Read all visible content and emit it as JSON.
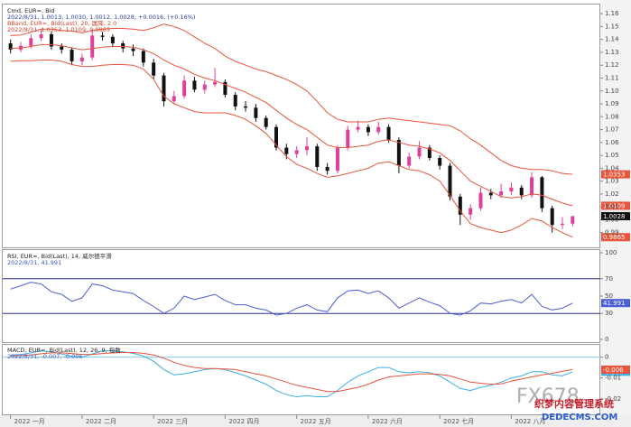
{
  "chart_data": [
    {
      "type": "candlestick",
      "title": "Cmd, EUR=, Bid",
      "subtitle": "2022/8/31, 1.0013, 1.0030, 1.0012, 1.0028, +0.0016, (+0.16%)",
      "annotations": [
        "BBand, EUR=, Bid(Last), 20, 属降, 2.0",
        "2022/8/31, 1.0353, 1.0109, 0.9865"
      ],
      "categories": [
        "2022 一月",
        null,
        null,
        null,
        null,
        null,
        null,
        "2022 二月",
        null,
        null,
        null,
        null,
        null,
        null,
        "2022 三月",
        null,
        null,
        null,
        null,
        null,
        null,
        "2022 四月",
        null,
        null,
        null,
        null,
        null,
        null,
        "2022 五月",
        null,
        null,
        null,
        null,
        null,
        null,
        "2022 六月",
        null,
        null,
        null,
        null,
        null,
        null,
        "2022 七月",
        null,
        null,
        null,
        null,
        null,
        null,
        "2022 八月",
        null,
        null,
        null,
        null,
        null,
        null
      ],
      "open": [
        1.137,
        1.132,
        1.135,
        1.141,
        1.144,
        1.1345,
        1.132,
        1.123,
        1.126,
        1.143,
        1.142,
        1.137,
        1.133,
        1.131,
        1.122,
        1.112,
        1.092,
        1.096,
        1.108,
        1.101,
        1.105,
        1.107,
        1.097,
        1.088,
        1.087,
        1.079,
        1.072,
        1.056,
        1.051,
        1.054,
        1.057,
        1.041,
        1.038,
        1.056,
        1.07,
        1.072,
        1.068,
        1.072,
        1.062,
        1.042,
        1.049,
        1.056,
        1.048,
        1.042,
        1.018,
        1.004,
        1.009,
        1.021,
        1.019,
        1.022,
        1.025,
        1.019,
        1.033,
        1.009,
        0.996,
        0.997
      ],
      "high": [
        1.14,
        1.138,
        1.144,
        1.148,
        1.146,
        1.137,
        1.134,
        1.129,
        1.148,
        1.146,
        1.144,
        1.139,
        1.136,
        1.133,
        1.125,
        1.114,
        1.1,
        1.112,
        1.111,
        1.108,
        1.118,
        1.109,
        1.099,
        1.092,
        1.09,
        1.081,
        1.074,
        1.059,
        1.057,
        1.064,
        1.059,
        1.044,
        1.058,
        1.073,
        1.077,
        1.074,
        1.076,
        1.074,
        1.064,
        1.052,
        1.061,
        1.058,
        1.05,
        1.044,
        1.02,
        1.012,
        1.025,
        1.024,
        1.028,
        1.029,
        1.027,
        1.037,
        1.034,
        1.011,
        1.002,
        1.003
      ],
      "low": [
        1.129,
        1.13,
        1.133,
        1.139,
        1.132,
        1.129,
        1.12,
        1.12,
        1.124,
        1.139,
        1.134,
        1.13,
        1.127,
        1.119,
        1.109,
        1.088,
        1.09,
        1.094,
        1.099,
        1.098,
        1.103,
        1.095,
        1.085,
        1.084,
        1.076,
        1.07,
        1.054,
        1.047,
        1.048,
        1.05,
        1.038,
        1.035,
        1.036,
        1.054,
        1.068,
        1.065,
        1.066,
        1.06,
        1.036,
        1.04,
        1.047,
        1.046,
        1.039,
        1.015,
        0.996,
        1.0,
        1.007,
        1.016,
        1.017,
        1.019,
        1.016,
        1.017,
        1.006,
        0.99,
        0.993,
        0.995
      ],
      "close": [
        1.132,
        1.135,
        1.141,
        1.144,
        1.1345,
        1.132,
        1.123,
        1.126,
        1.143,
        1.142,
        1.137,
        1.133,
        1.131,
        1.122,
        1.112,
        1.092,
        1.096,
        1.108,
        1.101,
        1.105,
        1.107,
        1.097,
        1.088,
        1.087,
        1.079,
        1.072,
        1.056,
        1.051,
        1.054,
        1.057,
        1.041,
        1.038,
        1.056,
        1.07,
        1.072,
        1.068,
        1.072,
        1.062,
        1.042,
        1.049,
        1.056,
        1.048,
        1.042,
        1.018,
        1.004,
        1.009,
        1.021,
        1.019,
        1.022,
        1.025,
        1.019,
        1.033,
        1.009,
        0.996,
        0.997,
        1.0028
      ],
      "up_color": "#e0409a",
      "down_color": "#111111",
      "close_box_color": "#111111",
      "series": [
        {
          "color": "#e8553b",
          "values": [
            1.143,
            1.1435,
            1.1455,
            1.148,
            1.148,
            1.147,
            1.1465,
            1.145,
            1.147,
            1.148,
            1.1485,
            1.1485,
            1.148,
            1.147,
            1.149,
            1.152,
            1.15,
            1.147,
            1.142,
            1.137,
            1.133,
            1.127,
            1.123,
            1.12,
            1.117,
            1.115,
            1.112,
            1.109,
            1.105,
            1.1,
            1.092,
            1.083,
            1.078,
            1.076,
            1.076,
            1.076,
            1.078,
            1.079,
            1.078,
            1.077,
            1.076,
            1.075,
            1.074,
            1.073,
            1.069,
            1.063,
            1.058,
            1.052,
            1.046,
            1.042,
            1.04,
            1.039,
            1.039,
            1.038,
            1.036,
            1.0353
          ]
        },
        {
          "color": "#e8553b",
          "values": [
            1.133,
            1.1335,
            1.1345,
            1.136,
            1.136,
            1.135,
            1.1335,
            1.132,
            1.133,
            1.134,
            1.1345,
            1.1345,
            1.134,
            1.132,
            1.129,
            1.124,
            1.12,
            1.117,
            1.113,
            1.11,
            1.108,
            1.105,
            1.102,
            1.099,
            1.095,
            1.091,
            1.085,
            1.079,
            1.074,
            1.07,
            1.064,
            1.058,
            1.056,
            1.056,
            1.057,
            1.058,
            1.061,
            1.062,
            1.06,
            1.058,
            1.057,
            1.055,
            1.052,
            1.046,
            1.038,
            1.03,
            1.026,
            1.022,
            1.018,
            1.017,
            1.018,
            1.02,
            1.019,
            1.016,
            1.013,
            1.0109
          ]
        },
        {
          "color": "#e8553b",
          "values": [
            1.123,
            1.1235,
            1.1235,
            1.124,
            1.124,
            1.123,
            1.1205,
            1.119,
            1.119,
            1.12,
            1.1205,
            1.1205,
            1.12,
            1.117,
            1.109,
            1.096,
            1.09,
            1.087,
            1.084,
            1.083,
            1.083,
            1.083,
            1.081,
            1.078,
            1.073,
            1.067,
            1.058,
            1.049,
            1.043,
            1.04,
            1.036,
            1.033,
            1.034,
            1.036,
            1.038,
            1.04,
            1.044,
            1.045,
            1.042,
            1.039,
            1.038,
            1.035,
            1.03,
            1.019,
            1.007,
            0.997,
            0.994,
            0.992,
            0.99,
            0.992,
            0.996,
            1.001,
            0.999,
            0.994,
            0.99,
            0.9865
          ]
        }
      ],
      "ylim": [
        0.98,
        1.165
      ],
      "yticks": [
        0.99,
        {
          "value": 1.0,
          "label": "1.00"
        },
        1.01,
        1.02,
        1.03,
        1.04,
        1.05,
        1.06,
        1.07,
        1.08,
        1.09,
        {
          "value": 1.1,
          "label": "1.10"
        },
        1.11,
        1.12,
        1.13,
        1.14,
        1.15,
        1.16
      ]
    },
    {
      "type": "line",
      "title": "RSI, EUR=, Bid(Last), 14, 威尔德平滑",
      "subtitle": "2022/8/31, 41.991",
      "series": [
        {
          "color": "#4a5fd6",
          "values": [
            58,
            62,
            66,
            64,
            55,
            52,
            44,
            48,
            64,
            62,
            57,
            55,
            53,
            45,
            38,
            30,
            36,
            50,
            46,
            49,
            52,
            45,
            40,
            40,
            36,
            34,
            28,
            30,
            36,
            40,
            34,
            32,
            48,
            56,
            57,
            53,
            56,
            48,
            36,
            42,
            48,
            43,
            39,
            30,
            28,
            33,
            42,
            41,
            44,
            46,
            42,
            52,
            38,
            34,
            36,
            41.991
          ]
        }
      ],
      "ylim": [
        0,
        100
      ],
      "yticks": [
        0,
        30,
        50,
        70,
        100
      ],
      "hlines": [
        30,
        70
      ],
      "hline_color": "#2a2f8a"
    },
    {
      "type": "line",
      "title": "MACD, EUR=, Bid(Last), 12, 26, 9, 指数",
      "subtitle": "2022/8/31, -0.007, -0.006",
      "series": [
        {
          "color": "#3ab0e8",
          "values": [
            0.001,
            0.0012,
            0.002,
            0.003,
            0.0025,
            0.0015,
            0.0003,
            0.0,
            0.0015,
            0.003,
            0.003,
            0.0025,
            0.0018,
            0.0005,
            -0.002,
            -0.006,
            -0.0085,
            -0.008,
            -0.007,
            -0.006,
            -0.0055,
            -0.006,
            -0.0075,
            -0.009,
            -0.011,
            -0.013,
            -0.016,
            -0.018,
            -0.019,
            -0.0185,
            -0.019,
            -0.019,
            -0.016,
            -0.012,
            -0.009,
            -0.007,
            -0.005,
            -0.005,
            -0.007,
            -0.0075,
            -0.007,
            -0.0075,
            -0.009,
            -0.012,
            -0.015,
            -0.016,
            -0.0145,
            -0.0135,
            -0.012,
            -0.01,
            -0.009,
            -0.007,
            -0.007,
            -0.0085,
            -0.009,
            -0.007
          ]
        },
        {
          "color": "#e8553b",
          "values": [
            0.0005,
            0.0007,
            0.001,
            0.0016,
            0.002,
            0.002,
            0.0017,
            0.0013,
            0.0013,
            0.0017,
            0.002,
            0.0022,
            0.0022,
            0.0018,
            0.001,
            -0.0005,
            -0.0025,
            -0.004,
            -0.005,
            -0.0055,
            -0.0055,
            -0.0057,
            -0.006,
            -0.007,
            -0.008,
            -0.009,
            -0.0105,
            -0.012,
            -0.0135,
            -0.0145,
            -0.0155,
            -0.0165,
            -0.0165,
            -0.0155,
            -0.0145,
            -0.013,
            -0.011,
            -0.0095,
            -0.009,
            -0.0085,
            -0.008,
            -0.008,
            -0.0083,
            -0.009,
            -0.0105,
            -0.012,
            -0.0125,
            -0.013,
            -0.0128,
            -0.0115,
            -0.0105,
            -0.0095,
            -0.0085,
            -0.0078,
            -0.0068,
            -0.006
          ]
        }
      ],
      "ylim": [
        -0.027,
        0.005
      ],
      "yticks": [
        -0.02,
        -0.01,
        0
      ],
      "hlines": [
        0
      ],
      "hline_color": "#7fd0f0"
    }
  ],
  "watermark": {
    "logo": "FX678",
    "cn": "织梦内容管理系统",
    "en": "DEDECMS.COM"
  }
}
